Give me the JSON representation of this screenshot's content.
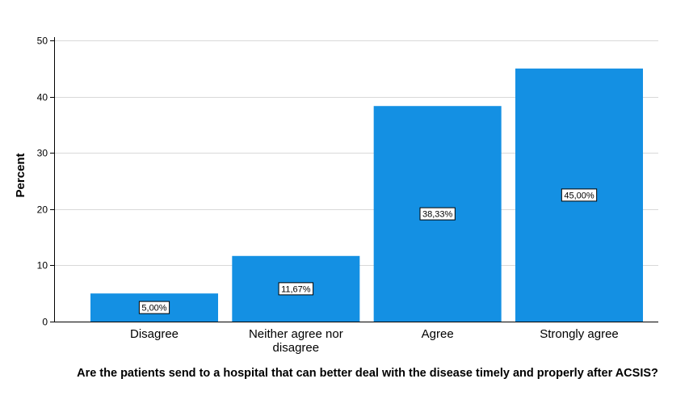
{
  "chart_data": {
    "type": "bar",
    "categories": [
      "Disagree",
      "Neither agree nor disagree",
      "Agree",
      "Strongly agree"
    ],
    "category_label_lines": [
      [
        "Disagree"
      ],
      [
        "Neither agree nor",
        "disagree"
      ],
      [
        "Agree"
      ],
      [
        "Strongly agree"
      ]
    ],
    "values": [
      5.0,
      11.67,
      38.33,
      45.0
    ],
    "data_labels": [
      "5,00%",
      "11,67%",
      "38,33%",
      "45,00%"
    ],
    "xlabel": "Are the patients send to a hospital that can better deal with the disease timely and properly after ACSIS?",
    "ylabel": "Percent",
    "ylim": [
      0,
      50
    ],
    "yticks": [
      0,
      10,
      20,
      30,
      40,
      50
    ],
    "grid": true,
    "legend": "none",
    "bar_color": "#1490e3"
  }
}
